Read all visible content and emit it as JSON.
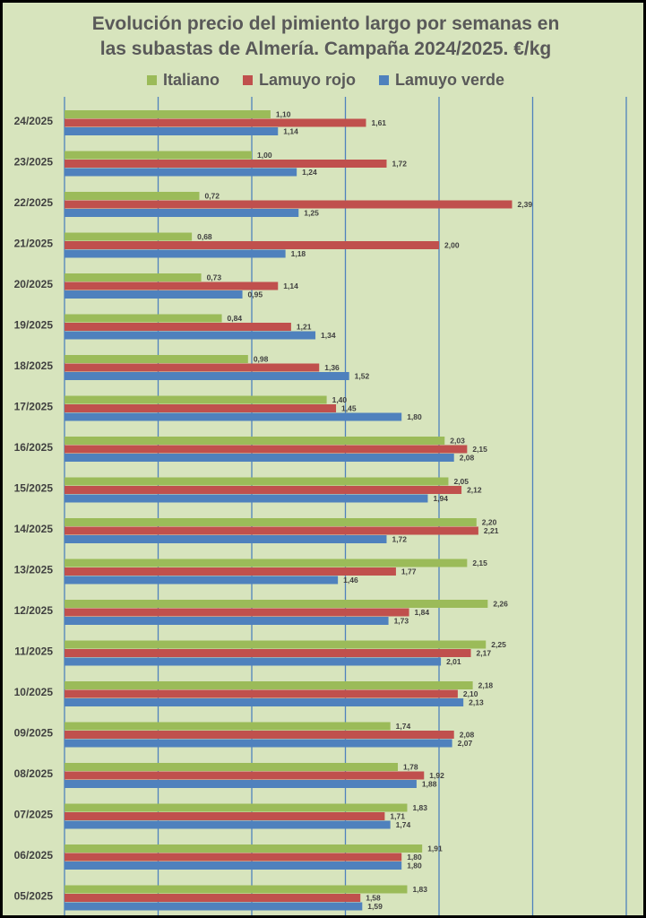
{
  "chart_data": {
    "type": "bar",
    "orientation": "horizontal",
    "title_lines": [
      "Evolución precio del pimiento largo por semanas en",
      "las subastas de Almería. Campaña 2024/2025. €/kg"
    ],
    "categories": [
      "24/2025",
      "23/2025",
      "22/2025",
      "21/2025",
      "20/2025",
      "19/2025",
      "18/2025",
      "17/2025",
      "16/2025",
      "15/2025",
      "14/2025",
      "13/2025",
      "12/2025",
      "11/2025",
      "10/2025",
      "09/2025",
      "08/2025",
      "07/2025",
      "06/2025",
      "05/2025"
    ],
    "series": [
      {
        "name": "Italiano",
        "color": "#9bbb59",
        "values": [
          1.1,
          1.0,
          0.72,
          0.68,
          0.73,
          0.84,
          0.98,
          1.4,
          2.03,
          2.05,
          2.2,
          2.15,
          2.26,
          2.25,
          2.18,
          1.74,
          1.78,
          1.83,
          1.91,
          1.83
        ]
      },
      {
        "name": "Lamuyo rojo",
        "color": "#c0504d",
        "values": [
          1.61,
          1.72,
          2.39,
          2.0,
          1.14,
          1.21,
          1.36,
          1.45,
          2.15,
          2.12,
          2.21,
          1.77,
          1.84,
          2.17,
          2.1,
          2.08,
          1.92,
          1.71,
          1.8,
          1.58
        ]
      },
      {
        "name": "Lamuyo verde",
        "color": "#4f81bd",
        "values": [
          1.14,
          1.24,
          1.25,
          1.18,
          0.95,
          1.34,
          1.52,
          1.8,
          2.08,
          1.94,
          1.72,
          1.46,
          1.73,
          2.01,
          2.13,
          2.07,
          1.88,
          1.74,
          1.8,
          1.59
        ]
      }
    ],
    "xlim": [
      0,
      3.0
    ],
    "gridlines": "vertical",
    "legend_position": "top",
    "data_labels": true,
    "decimal_separator": ","
  }
}
